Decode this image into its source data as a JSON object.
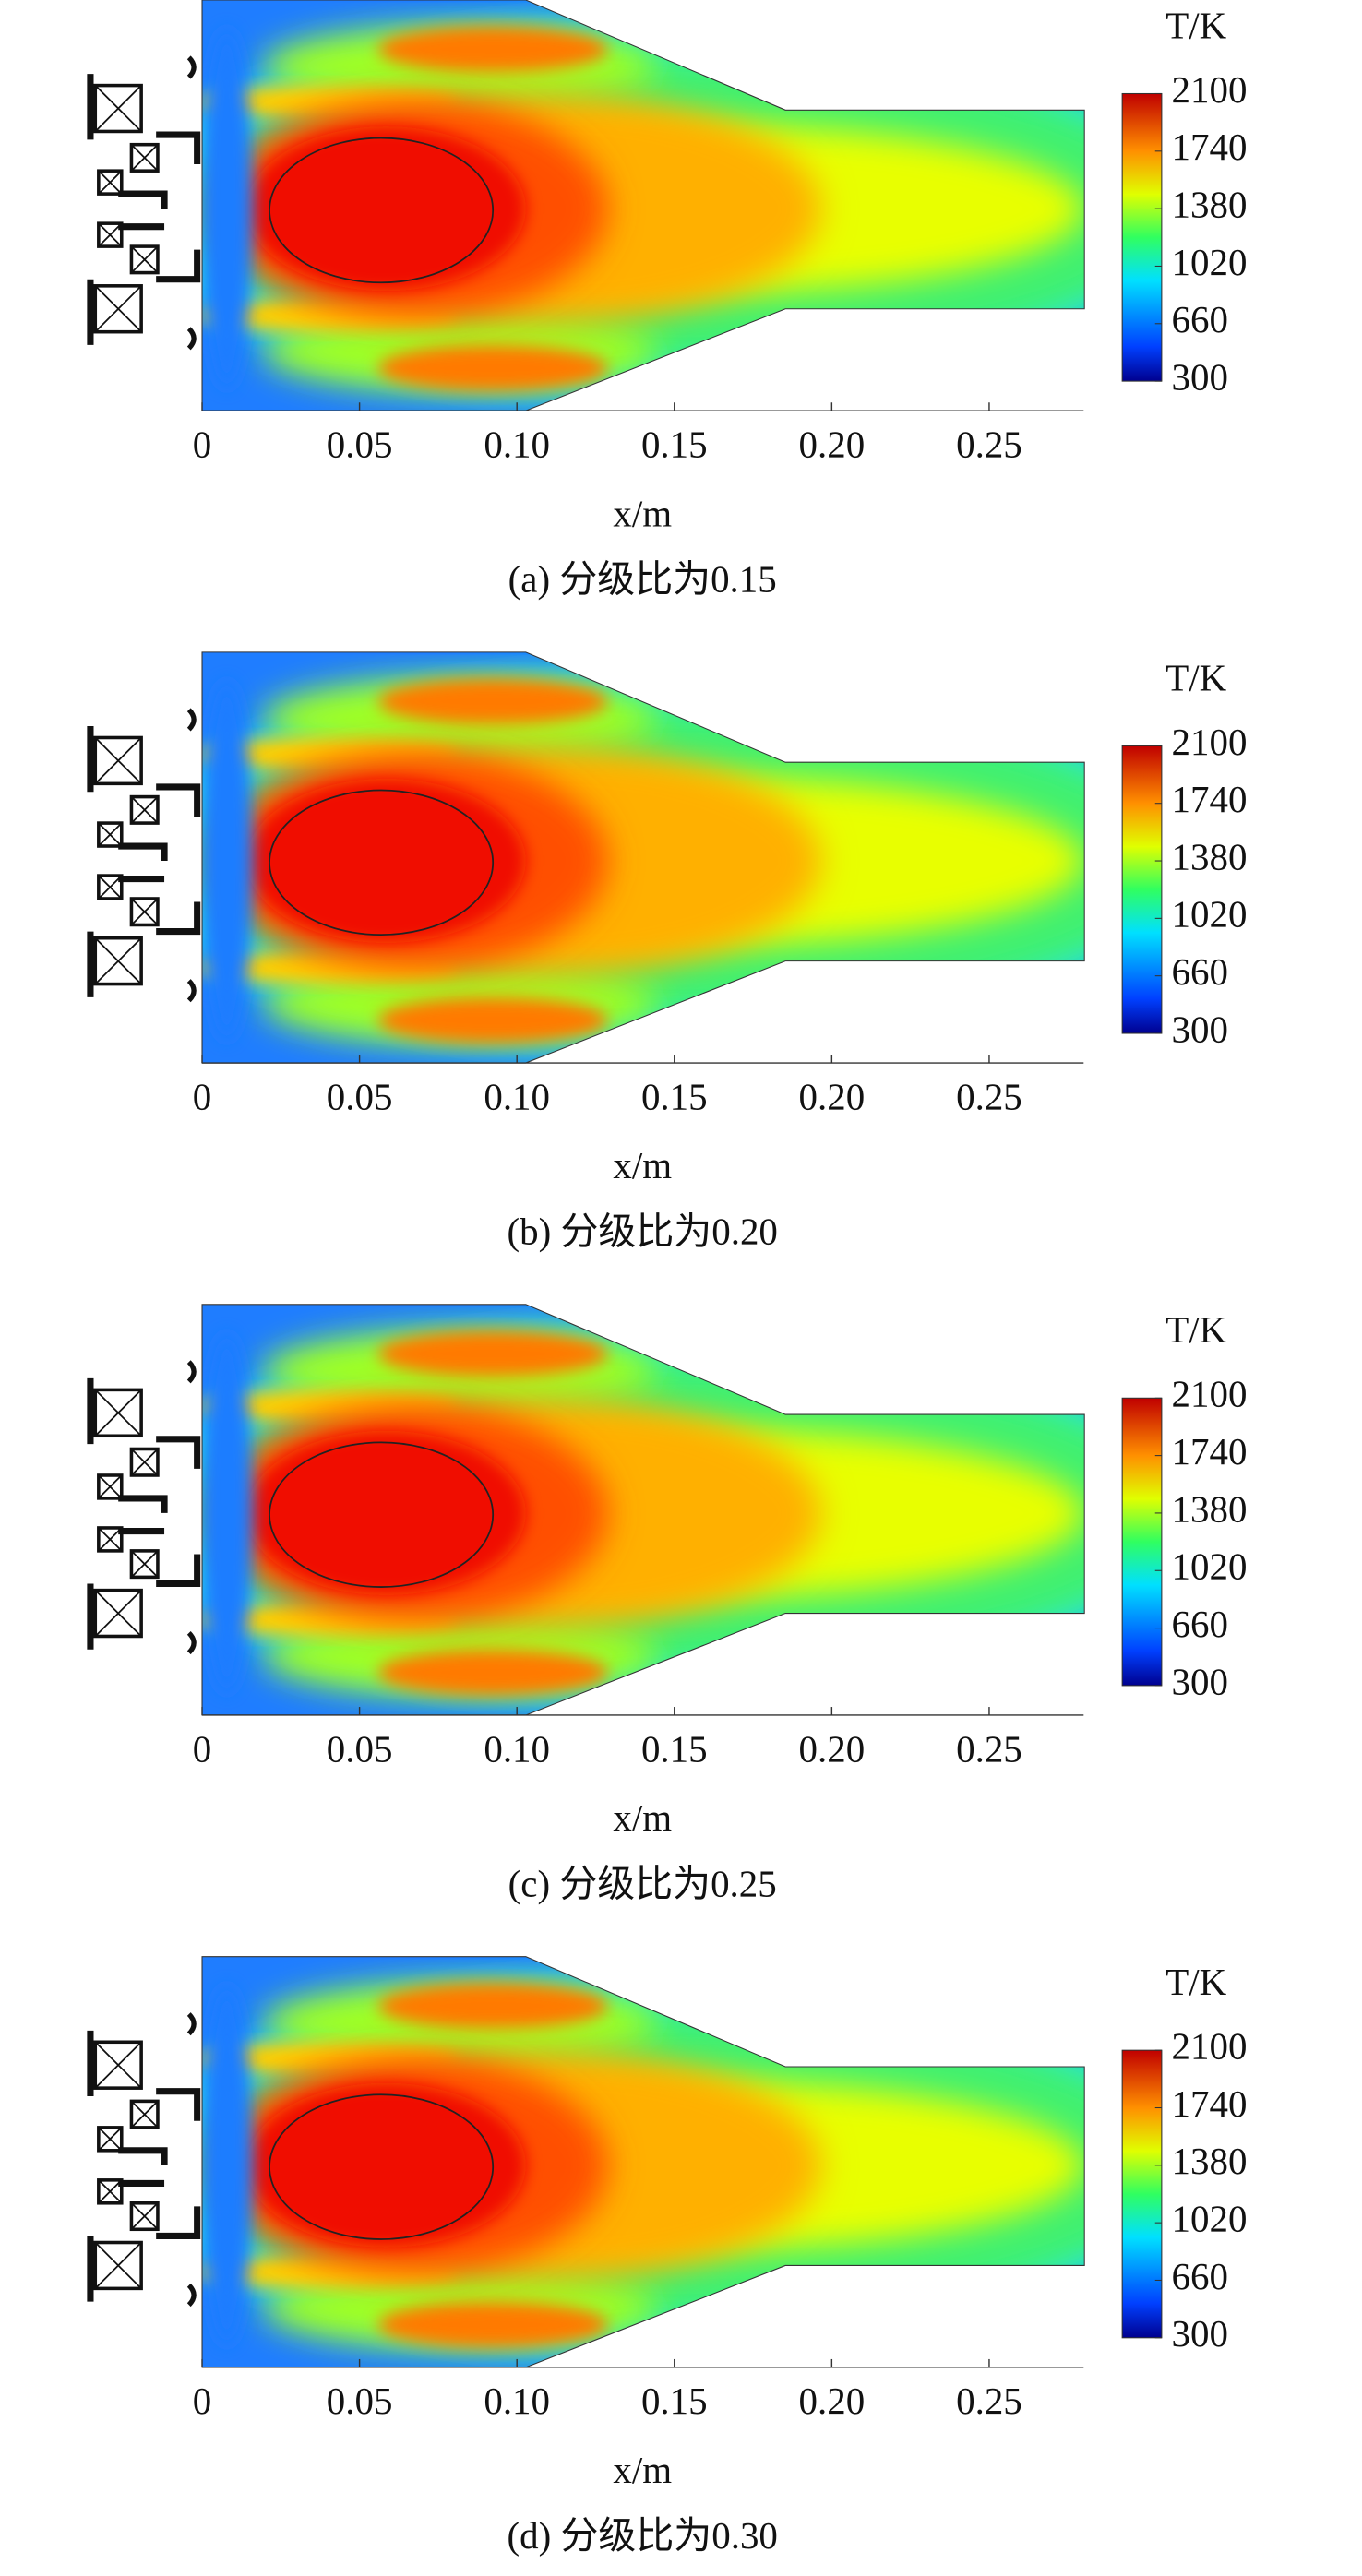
{
  "chart_data": [
    {
      "type": "contour",
      "caption": "(a) 分级比为0.15",
      "x_label": "x/m",
      "colorbar_title": "T/K",
      "xlim": [
        0,
        0.28
      ],
      "xticks": [
        0,
        0.05,
        {
          "value": 0.1,
          "label": "0.10"
        },
        0.15,
        {
          "value": 0.2,
          "label": "0.20"
        },
        0.25
      ],
      "clim": [
        300,
        2100
      ],
      "cticks": [
        2100,
        1740,
        1380,
        1020,
        660,
        300
      ]
    },
    {
      "type": "contour",
      "caption": "(b) 分级比为0.20",
      "x_label": "x/m",
      "colorbar_title": "T/K",
      "xlim": [
        0,
        0.28
      ],
      "xticks": [
        0,
        0.05,
        {
          "value": 0.1,
          "label": "0.10"
        },
        0.15,
        {
          "value": 0.2,
          "label": "0.20"
        },
        0.25
      ],
      "clim": [
        300,
        2100
      ],
      "cticks": [
        2100,
        1740,
        1380,
        1020,
        660,
        300
      ]
    },
    {
      "type": "contour",
      "caption": "(c) 分级比为0.25",
      "x_label": "x/m",
      "colorbar_title": "T/K",
      "xlim": [
        0,
        0.28
      ],
      "xticks": [
        0,
        0.05,
        {
          "value": 0.1,
          "label": "0.10"
        },
        0.15,
        {
          "value": 0.2,
          "label": "0.20"
        },
        0.25
      ],
      "clim": [
        300,
        2100
      ],
      "cticks": [
        2100,
        1740,
        1380,
        1020,
        660,
        300
      ]
    },
    {
      "type": "contour",
      "caption": "(d) 分级比为0.30",
      "x_label": "x/m",
      "colorbar_title": "T/K",
      "xlim": [
        0,
        0.28
      ],
      "xticks": [
        0,
        0.05,
        {
          "value": 0.1,
          "label": "0.10"
        },
        0.15,
        {
          "value": 0.2,
          "label": "0.20"
        },
        0.25
      ],
      "clim": [
        300,
        2100
      ],
      "cticks": [
        2100,
        1740,
        1380,
        1020,
        660,
        300
      ]
    }
  ]
}
